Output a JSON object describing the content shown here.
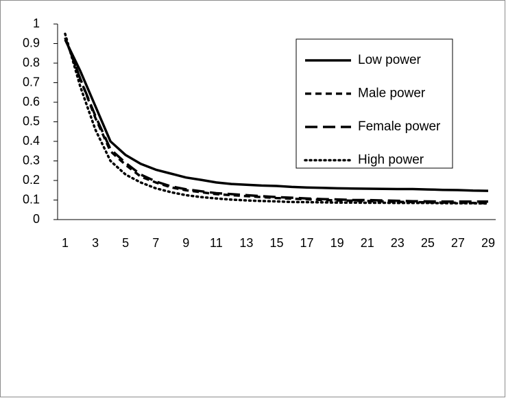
{
  "chart_data": {
    "type": "line",
    "categories": [
      "1",
      null,
      "3",
      null,
      "5",
      null,
      "7",
      null,
      "9",
      null,
      "11",
      null,
      "13",
      null,
      "15",
      null,
      "17",
      null,
      "19",
      null,
      "21",
      null,
      "23",
      null,
      "25",
      null,
      "27",
      null,
      "29"
    ],
    "series": [
      {
        "name": "Low power",
        "color": "#000000",
        "style": "solid",
        "values": [
          0.92,
          0.76,
          0.58,
          0.4,
          0.33,
          0.285,
          0.255,
          0.235,
          0.215,
          0.203,
          0.19,
          0.182,
          0.178,
          0.174,
          0.172,
          0.167,
          0.164,
          0.162,
          0.16,
          0.159,
          0.158,
          0.157,
          0.156,
          0.156,
          0.154,
          0.152,
          0.151,
          0.148,
          0.147
        ]
      },
      {
        "name": "Male power",
        "color": "#000000",
        "style": "dash",
        "values": [
          0.93,
          0.72,
          0.52,
          0.35,
          0.28,
          0.22,
          0.19,
          0.165,
          0.15,
          0.14,
          0.13,
          0.125,
          0.12,
          0.115,
          0.11,
          0.107,
          0.104,
          0.1,
          0.098,
          0.097,
          0.095,
          0.093,
          0.091,
          0.09,
          0.088,
          0.087,
          0.086,
          0.085,
          0.084
        ]
      },
      {
        "name": "Female power",
        "color": "#000000",
        "style": "longdash",
        "values": [
          0.93,
          0.72,
          0.53,
          0.36,
          0.29,
          0.23,
          0.195,
          0.17,
          0.155,
          0.145,
          0.135,
          0.13,
          0.125,
          0.12,
          0.115,
          0.112,
          0.108,
          0.105,
          0.103,
          0.1,
          0.1,
          0.098,
          0.096,
          0.094,
          0.093,
          0.092,
          0.092,
          0.092,
          0.092
        ]
      },
      {
        "name": "High power",
        "color": "#000000",
        "style": "dot",
        "values": [
          0.95,
          0.68,
          0.46,
          0.3,
          0.23,
          0.19,
          0.16,
          0.14,
          0.125,
          0.115,
          0.108,
          0.102,
          0.098,
          0.095,
          0.093,
          0.09,
          0.089,
          0.088,
          0.087,
          0.087,
          0.086,
          0.086,
          0.085,
          0.085,
          0.085,
          0.084,
          0.083,
          0.083,
          0.082
        ]
      }
    ],
    "ylim": [
      0,
      1
    ],
    "yticks": [
      0,
      0.1,
      0.2,
      0.3,
      0.4,
      0.5,
      0.6,
      0.7,
      0.8,
      0.9,
      1
    ],
    "grid": false,
    "legend": "upper right"
  }
}
